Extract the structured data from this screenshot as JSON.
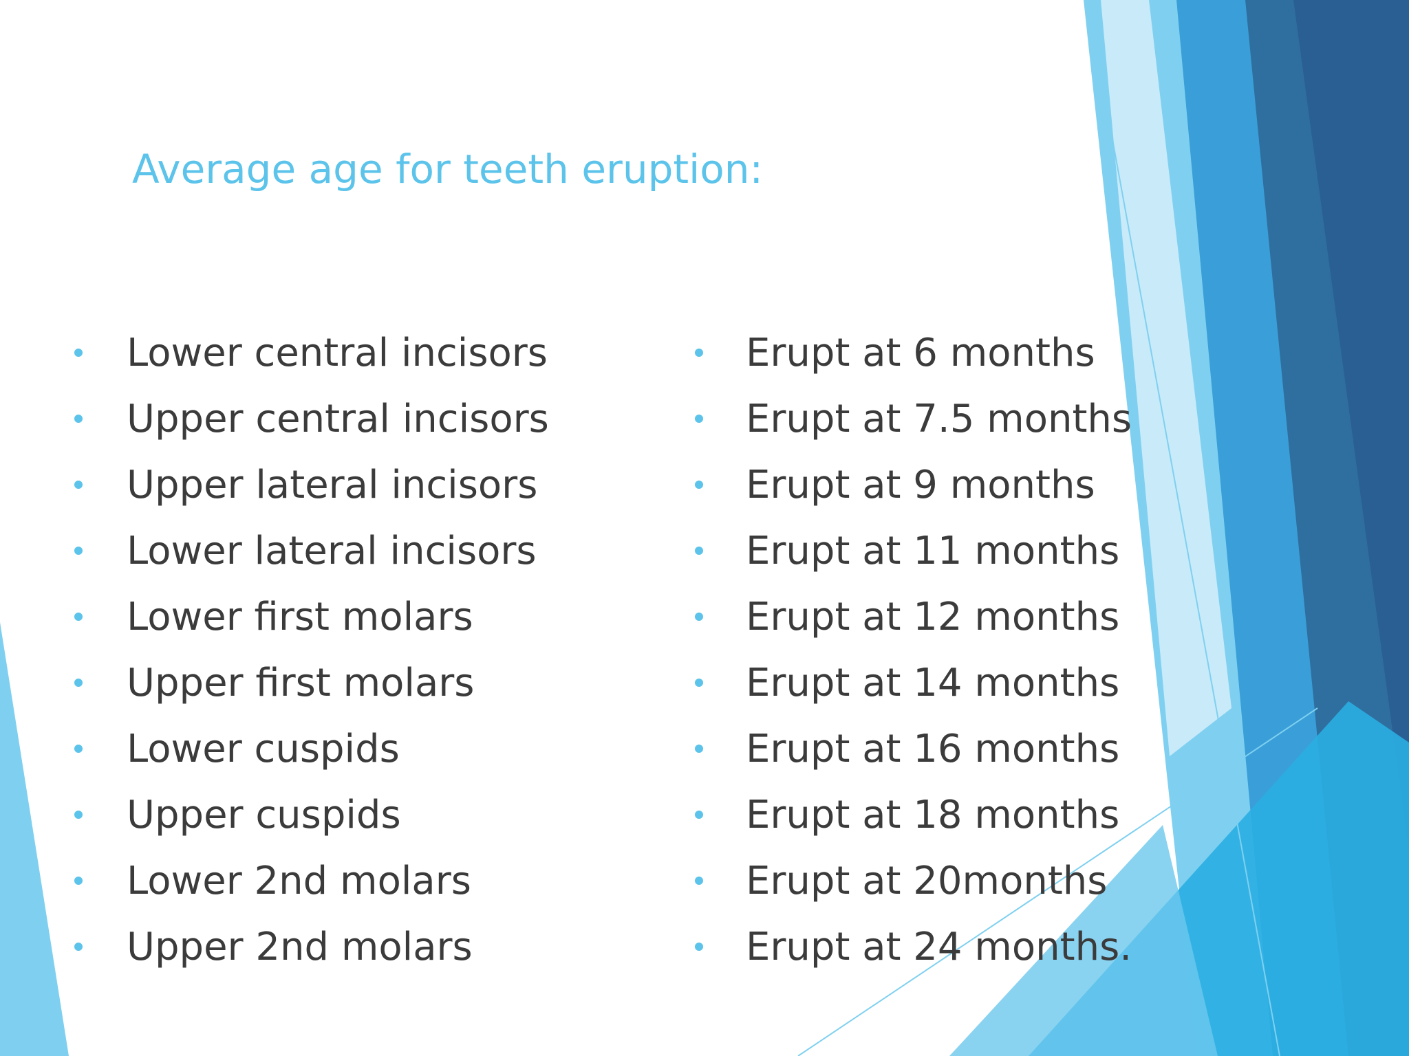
{
  "slide": {
    "title": "Average age for teeth eruption:",
    "left_items": [
      "Lower central incisors",
      "Upper central incisors",
      "Upper lateral incisors",
      "Lower lateral incisors",
      "Lower first molars",
      "Upper first molars",
      "Lower cuspids",
      "Upper cuspids",
      "Lower 2nd molars",
      "Upper 2nd molars"
    ],
    "right_items": [
      " Erupt at 6 months",
      " Erupt at 7.5 months",
      " Erupt at 9 months",
      " Erupt at 11 months",
      "Erupt at 12 months",
      " Erupt at 14 months",
      " Erupt at 16 months",
      " Erupt at 18 months",
      " Erupt at 20months",
      "Erupt at 24 months."
    ]
  },
  "colors": {
    "title": "#5cc3ea",
    "body_text": "#3b3b3b",
    "bullet": "#5cc3ea",
    "decor_light": "#7fd0f0",
    "decor_mid": "#3fb0e3",
    "decor_dark": "#2f6f9f"
  }
}
